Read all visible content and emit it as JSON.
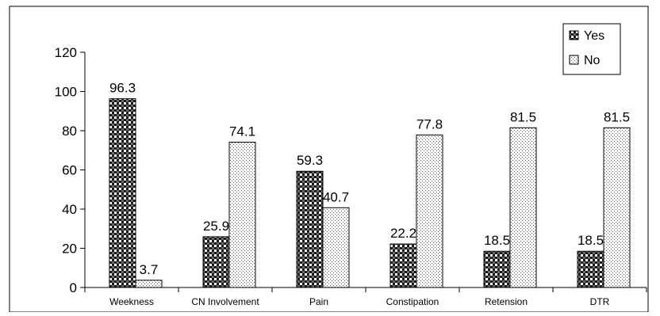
{
  "chart_data": {
    "type": "bar",
    "categories": [
      "Weekness",
      "CN Involvement",
      "Pain",
      "Constipation",
      "Retension",
      "DTR"
    ],
    "series": [
      {
        "name": "Yes",
        "values": [
          96.3,
          25.9,
          59.3,
          22.2,
          18.5,
          18.5
        ],
        "pattern": "checker",
        "color": "#000000"
      },
      {
        "name": "No",
        "values": [
          3.7,
          74.1,
          40.7,
          77.8,
          81.5,
          81.5
        ],
        "pattern": "dots",
        "color": "#000000"
      }
    ],
    "value_labels": {
      "yes": [
        "96.3",
        "25.9",
        "59.3",
        "22.2",
        "18.5",
        "18.5"
      ],
      "no": [
        "3.7",
        "74.1",
        "40.7",
        "77.8",
        "81.5",
        "81.5"
      ]
    },
    "y_ticks": [
      "0",
      "20",
      "40",
      "60",
      "80",
      "100",
      "120"
    ],
    "ylim": [
      0,
      120
    ],
    "title": "",
    "xlabel": "",
    "ylabel": "",
    "grid": false,
    "legend_position": "top-right"
  }
}
